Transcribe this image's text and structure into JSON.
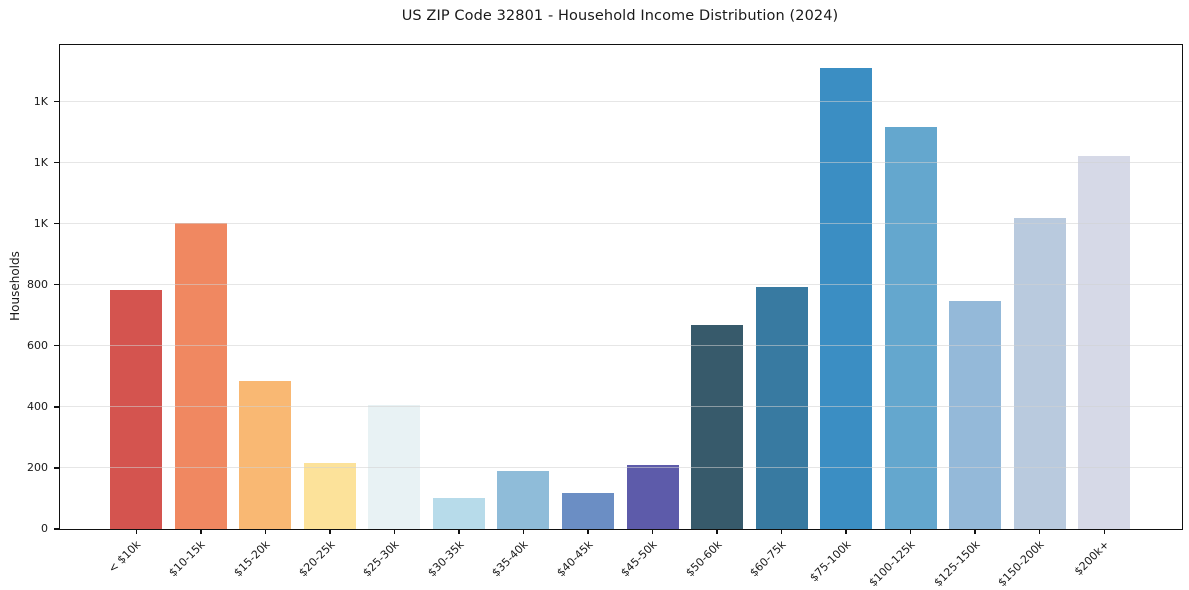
{
  "chart_data": {
    "type": "bar",
    "title": "US ZIP Code 32801 - Household Income Distribution (2024)",
    "xlabel": "",
    "ylabel": "Households",
    "categories": [
      "< $10k",
      "$10-15k",
      "$15-20k",
      "$20-25k",
      "$25-30k",
      "$30-35k",
      "$35-40k",
      "$40-45k",
      "$45-50k",
      "$50-60k",
      "$60-75k",
      "$75-100k",
      "$100-125k",
      "$125-150k",
      "$150-200k",
      "$200k+"
    ],
    "values": [
      783,
      1002,
      485,
      216,
      405,
      101,
      190,
      118,
      210,
      669,
      793,
      1510,
      1315,
      748,
      1020,
      1220
    ],
    "bar_colors": [
      "#d4544f",
      "#f08861",
      "#f9b873",
      "#fce29a",
      "#e8f2f4",
      "#b7dbea",
      "#8fbcd9",
      "#6b8ec4",
      "#5d5baa",
      "#375a6b",
      "#387aa1",
      "#3b8ec3",
      "#64a7ce",
      "#94b9d9",
      "#b9cade",
      "#d6d9e7"
    ],
    "ylim": [
      0,
      1585
    ],
    "yticks": {
      "values": [
        0,
        200,
        400,
        600,
        800,
        1000,
        1200,
        1400
      ],
      "labels": [
        "0",
        "200",
        "400",
        "600",
        "800",
        "1K",
        "1K",
        "1K"
      ]
    },
    "grid": "horizontal",
    "legend": "none",
    "background": "#ffffff"
  }
}
